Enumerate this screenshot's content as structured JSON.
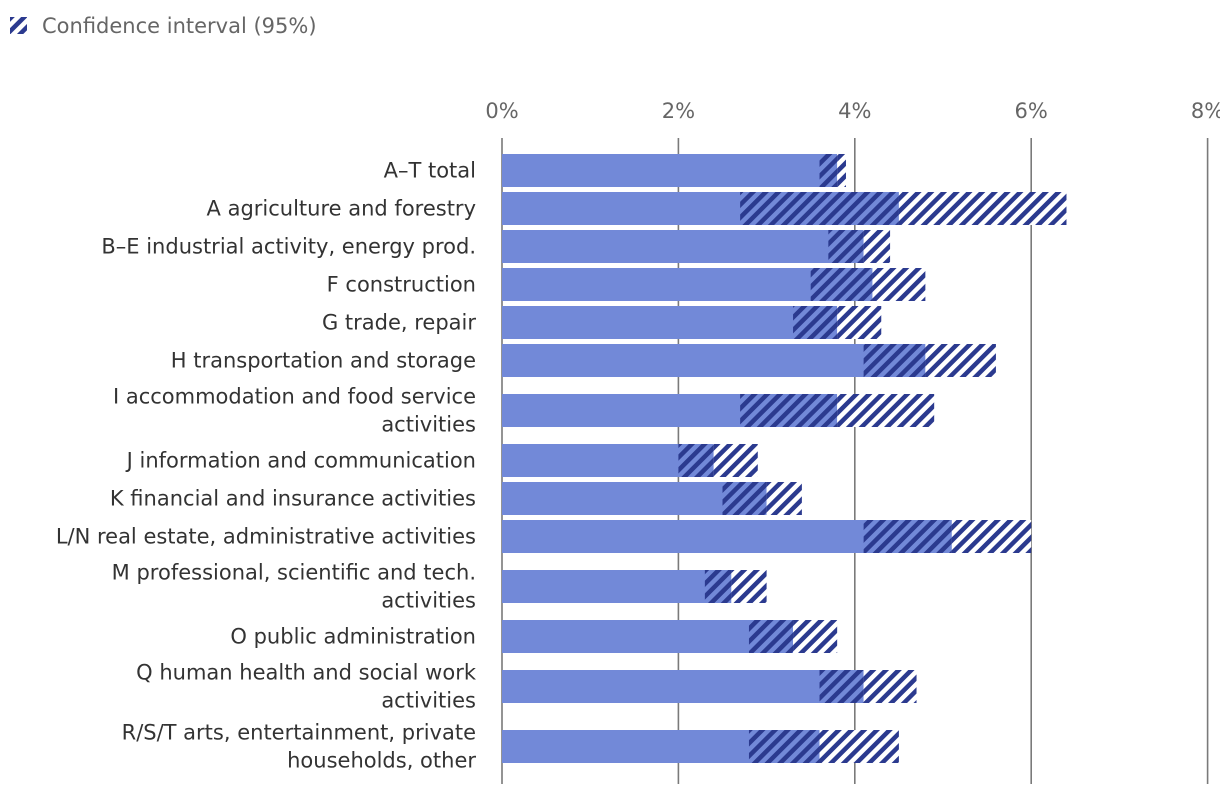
{
  "legend": {
    "ci_label": "Confidence interval (95%)"
  },
  "colors": {
    "bar": "#7289d8",
    "ci_dark": "#2b3a8f",
    "ci_light": "#ffffff",
    "grid": "#7a7a7a"
  },
  "chart_data": {
    "type": "bar",
    "orientation": "horizontal",
    "title": "",
    "xlabel": "",
    "ylabel": "",
    "xlim": [
      0,
      8
    ],
    "xticks": [
      0,
      2,
      4,
      6,
      8
    ],
    "xtick_labels": [
      "0%",
      "2%",
      "4%",
      "6%",
      "8%"
    ],
    "categories": [
      [
        "A–T total"
      ],
      [
        "A agriculture and forestry"
      ],
      [
        "B–E industrial activity, energy prod."
      ],
      [
        "F construction"
      ],
      [
        "G trade, repair"
      ],
      [
        "H transportation and storage"
      ],
      [
        "I accommodation and food service",
        "activities"
      ],
      [
        "J information and communication"
      ],
      [
        "K financial and insurance activities"
      ],
      [
        "L/N real estate, administrative activities"
      ],
      [
        "M professional, scientific and tech.",
        "activities"
      ],
      [
        "O public administration"
      ],
      [
        "Q human health and social work",
        "activities"
      ],
      [
        "R/S/T arts, entertainment, private",
        "households, other"
      ]
    ],
    "values": [
      3.8,
      4.5,
      4.1,
      4.2,
      3.8,
      4.8,
      3.8,
      2.4,
      3.0,
      5.1,
      2.6,
      3.3,
      4.1,
      3.6
    ],
    "ci_lower": [
      3.6,
      2.7,
      3.7,
      3.5,
      3.3,
      4.1,
      2.7,
      2.0,
      2.5,
      4.1,
      2.3,
      2.8,
      3.6,
      2.8
    ],
    "ci_upper": [
      3.9,
      6.4,
      4.4,
      4.8,
      4.3,
      5.6,
      4.9,
      2.9,
      3.4,
      6.0,
      3.0,
      3.8,
      4.7,
      4.5
    ],
    "legend_position": "top-left"
  }
}
